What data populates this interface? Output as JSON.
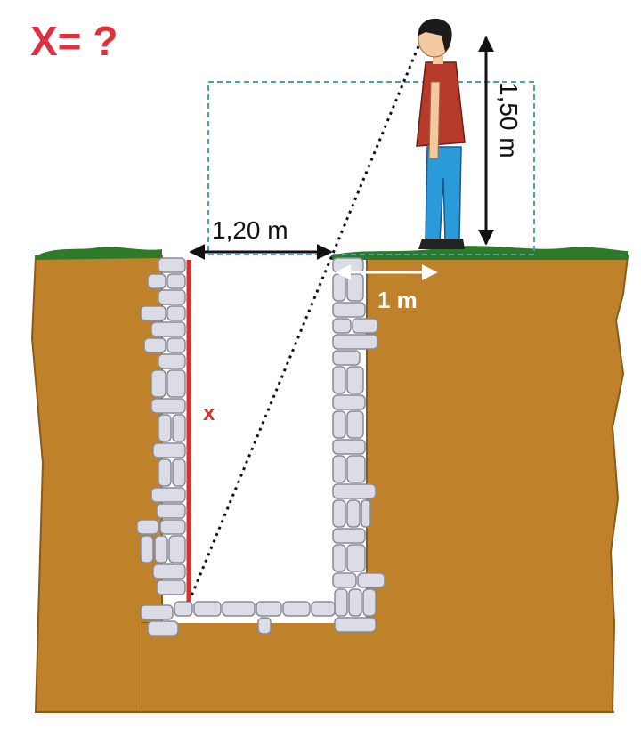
{
  "question": "X= ?",
  "labels": {
    "width_top": "1,20 m",
    "eye_height": "1,50 m",
    "offset": "1 m",
    "unknown": "x"
  },
  "colors": {
    "question": "#e0303f",
    "soil": "#bf822a",
    "soil_edge": "#8a5a1a",
    "grass": "#2f7a2a",
    "brick": "#dcdce6",
    "brick_edge": "#8a8a96",
    "depth_line": "#d9302c",
    "guide_box": "#4aa3b0",
    "shirt": "#b83a2a",
    "pants": "#2a9ad8",
    "hair": "#1a1a1a",
    "skin": "#f2c9a0"
  },
  "icons": [
    "person-icon"
  ]
}
